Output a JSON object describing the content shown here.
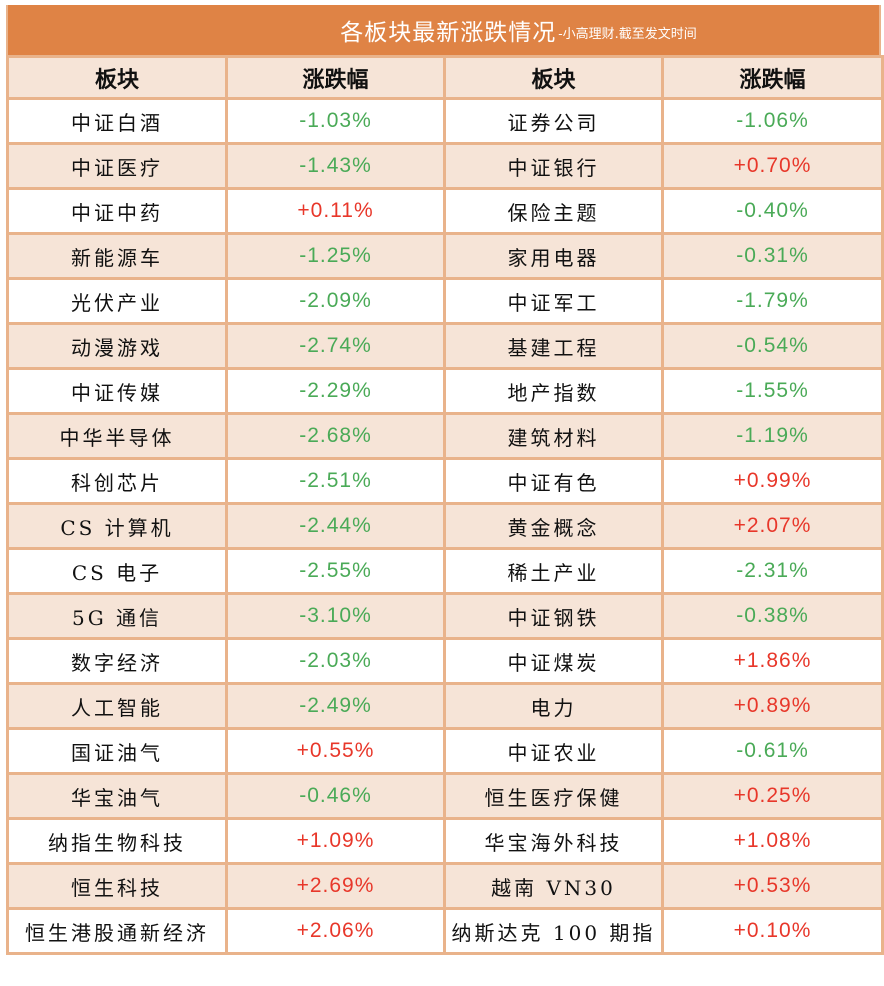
{
  "title": {
    "main": "各板块最新涨跌情况",
    "sub": "-小高理财.截至发文时间"
  },
  "headers": [
    "板块",
    "涨跌幅",
    "板块",
    "涨跌幅"
  ],
  "colors": {
    "up": "#e8372a",
    "down": "#4aaa57",
    "title_bg": "#df8345",
    "alt_row_bg": "#f6e4d7",
    "border": "#e9b38b"
  },
  "rows": [
    {
      "left_name": "中证白酒",
      "left_change": "-1.03%",
      "left_dir": "down",
      "right_name": "证券公司",
      "right_change": "-1.06%",
      "right_dir": "down"
    },
    {
      "left_name": "中证医疗",
      "left_change": "-1.43%",
      "left_dir": "down",
      "right_name": "中证银行",
      "right_change": "+0.70%",
      "right_dir": "up"
    },
    {
      "left_name": "中证中药",
      "left_change": "+0.11%",
      "left_dir": "up",
      "right_name": "保险主题",
      "right_change": "-0.40%",
      "right_dir": "down"
    },
    {
      "left_name": "新能源车",
      "left_change": "-1.25%",
      "left_dir": "down",
      "right_name": "家用电器",
      "right_change": "-0.31%",
      "right_dir": "down"
    },
    {
      "left_name": "光伏产业",
      "left_change": "-2.09%",
      "left_dir": "down",
      "right_name": "中证军工",
      "right_change": "-1.79%",
      "right_dir": "down"
    },
    {
      "left_name": "动漫游戏",
      "left_change": "-2.74%",
      "left_dir": "down",
      "right_name": "基建工程",
      "right_change": "-0.54%",
      "right_dir": "down"
    },
    {
      "left_name": "中证传媒",
      "left_change": "-2.29%",
      "left_dir": "down",
      "right_name": "地产指数",
      "right_change": "-1.55%",
      "right_dir": "down"
    },
    {
      "left_name": "中华半导体",
      "left_change": "-2.68%",
      "left_dir": "down",
      "right_name": "建筑材料",
      "right_change": "-1.19%",
      "right_dir": "down"
    },
    {
      "left_name": "科创芯片",
      "left_change": "-2.51%",
      "left_dir": "down",
      "right_name": "中证有色",
      "right_change": "+0.99%",
      "right_dir": "up"
    },
    {
      "left_name": "CS 计算机",
      "left_change": "-2.44%",
      "left_dir": "down",
      "right_name": "黄金概念",
      "right_change": "+2.07%",
      "right_dir": "up"
    },
    {
      "left_name": "CS 电子",
      "left_change": "-2.55%",
      "left_dir": "down",
      "right_name": "稀土产业",
      "right_change": "-2.31%",
      "right_dir": "down"
    },
    {
      "left_name": "5G 通信",
      "left_change": "-3.10%",
      "left_dir": "down",
      "right_name": "中证钢铁",
      "right_change": "-0.38%",
      "right_dir": "down"
    },
    {
      "left_name": "数字经济",
      "left_change": "-2.03%",
      "left_dir": "down",
      "right_name": "中证煤炭",
      "right_change": "+1.86%",
      "right_dir": "up"
    },
    {
      "left_name": "人工智能",
      "left_change": "-2.49%",
      "left_dir": "down",
      "right_name": "电力",
      "right_change": "+0.89%",
      "right_dir": "up"
    },
    {
      "left_name": "国证油气",
      "left_change": "+0.55%",
      "left_dir": "up",
      "right_name": "中证农业",
      "right_change": "-0.61%",
      "right_dir": "down"
    },
    {
      "left_name": "华宝油气",
      "left_change": "-0.46%",
      "left_dir": "down",
      "right_name": "恒生医疗保健",
      "right_change": "+0.25%",
      "right_dir": "up"
    },
    {
      "left_name": "纳指生物科技",
      "left_change": "+1.09%",
      "left_dir": "up",
      "right_name": "华宝海外科技",
      "right_change": "+1.08%",
      "right_dir": "up"
    },
    {
      "left_name": "恒生科技",
      "left_change": "+2.69%",
      "left_dir": "up",
      "right_name": "越南 VN30",
      "right_change": "+0.53%",
      "right_dir": "up"
    },
    {
      "left_name": "恒生港股通新经济",
      "left_change": "+2.06%",
      "left_dir": "up",
      "right_name": "纳斯达克 100 期指",
      "right_change": "+0.10%",
      "right_dir": "up"
    }
  ]
}
